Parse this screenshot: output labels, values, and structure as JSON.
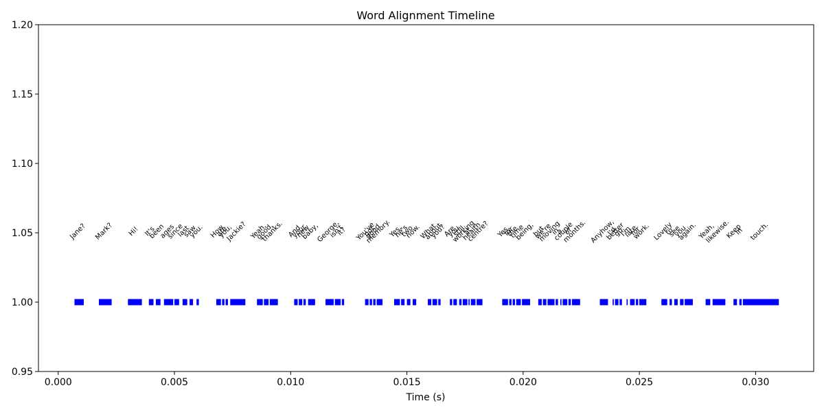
{
  "chart_data": {
    "type": "timeline",
    "title": "Word Alignment Timeline",
    "xlabel": "Time (s)",
    "ylabel": "",
    "xlim": [
      -0.00085,
      0.0325
    ],
    "ylim": [
      0.95,
      1.2
    ],
    "xticks": [
      0.0,
      0.005,
      0.01,
      0.015,
      0.02,
      0.025,
      0.03
    ],
    "xtick_labels": [
      "0.000",
      "0.005",
      "0.010",
      "0.015",
      "0.020",
      "0.025",
      "0.030"
    ],
    "yticks": [
      0.95,
      1.0,
      1.05,
      1.1,
      1.15,
      1.2
    ],
    "ytick_labels": [
      "0.95",
      "1.00",
      "1.05",
      "1.10",
      "1.15",
      "1.20"
    ],
    "segment_y": 1.0,
    "label_y": 1.05,
    "segment_color": "#0000ff",
    "words": [
      {
        "word": "Jane?",
        "start": 0.0007,
        "end": 0.0011
      },
      {
        "word": "Mark?",
        "start": 0.00175,
        "end": 0.0023
      },
      {
        "word": "Hi!",
        "start": 0.003,
        "end": 0.0036
      },
      {
        "word": "It's",
        "start": 0.0039,
        "end": 0.0041
      },
      {
        "word": "been",
        "start": 0.0042,
        "end": 0.0044
      },
      {
        "word": "ages",
        "start": 0.00455,
        "end": 0.00495
      },
      {
        "word": "since",
        "start": 0.005,
        "end": 0.0052
      },
      {
        "word": "last",
        "start": 0.00535,
        "end": 0.00555
      },
      {
        "word": "saw",
        "start": 0.00565,
        "end": 0.0058
      },
      {
        "word": "you.",
        "start": 0.00595,
        "end": 0.00605
      },
      {
        "word": "How",
        "start": 0.0068,
        "end": 0.007
      },
      {
        "word": "are",
        "start": 0.00705,
        "end": 0.00715
      },
      {
        "word": "you,",
        "start": 0.0072,
        "end": 0.0073
      },
      {
        "word": "Jackie?",
        "start": 0.0074,
        "end": 0.00805
      },
      {
        "word": "Yeah,",
        "start": 0.00855,
        "end": 0.0088
      },
      {
        "word": "good,",
        "start": 0.00885,
        "end": 0.00905
      },
      {
        "word": "thanks.",
        "start": 0.0091,
        "end": 0.00945
      },
      {
        "word": "And",
        "start": 0.01015,
        "end": 0.0103
      },
      {
        "word": "your",
        "start": 0.01035,
        "end": 0.0105
      },
      {
        "word": "new",
        "start": 0.01055,
        "end": 0.01065
      },
      {
        "word": "baby,",
        "start": 0.01075,
        "end": 0.01105
      },
      {
        "word": "George,",
        "start": 0.0115,
        "end": 0.01185
      },
      {
        "word": "isn't",
        "start": 0.0119,
        "end": 0.01215
      },
      {
        "word": "it?",
        "start": 0.0122,
        "end": 0.0123
      },
      {
        "word": "You've",
        "start": 0.0132,
        "end": 0.01335
      },
      {
        "word": "got",
        "start": 0.0134,
        "end": 0.0135
      },
      {
        "word": "good",
        "start": 0.01355,
        "end": 0.01365
      },
      {
        "word": "memory.",
        "start": 0.0137,
        "end": 0.01395
      },
      {
        "word": "Yes,",
        "start": 0.01445,
        "end": 0.0147
      },
      {
        "word": "he's",
        "start": 0.01475,
        "end": 0.0149
      },
      {
        "word": "two",
        "start": 0.015,
        "end": 0.01515
      },
      {
        "word": "now.",
        "start": 0.01525,
        "end": 0.0154
      },
      {
        "word": "What",
        "start": 0.0159,
        "end": 0.01605
      },
      {
        "word": "about",
        "start": 0.0161,
        "end": 0.0163
      },
      {
        "word": "you?",
        "start": 0.01635,
        "end": 0.01645
      },
      {
        "word": "Are",
        "start": 0.01685,
        "end": 0.01695
      },
      {
        "word": "you",
        "start": 0.017,
        "end": 0.01715
      },
      {
        "word": "still",
        "start": 0.01725,
        "end": 0.01735
      },
      {
        "word": "working",
        "start": 0.0174,
        "end": 0.0176
      },
      {
        "word": "at",
        "start": 0.01765,
        "end": 0.0177
      },
      {
        "word": "health",
        "start": 0.01775,
        "end": 0.01795
      },
      {
        "word": "centre?",
        "start": 0.018,
        "end": 0.01825
      },
      {
        "word": "Yes,",
        "start": 0.0191,
        "end": 0.01935
      },
      {
        "word": "for",
        "start": 0.0194,
        "end": 0.0195
      },
      {
        "word": "the",
        "start": 0.01955,
        "end": 0.01965
      },
      {
        "word": "time",
        "start": 0.0197,
        "end": 0.0199
      },
      {
        "word": "being,",
        "start": 0.01995,
        "end": 0.0203
      },
      {
        "word": "but",
        "start": 0.02065,
        "end": 0.0208
      },
      {
        "word": "we're",
        "start": 0.02085,
        "end": 0.021
      },
      {
        "word": "moving",
        "start": 0.02105,
        "end": 0.02135
      },
      {
        "word": "in",
        "start": 0.0214,
        "end": 0.0215
      },
      {
        "word": "a",
        "start": 0.0216,
        "end": 0.02165
      },
      {
        "word": "couple",
        "start": 0.0217,
        "end": 0.0219
      },
      {
        "word": "of",
        "start": 0.02195,
        "end": 0.02205
      },
      {
        "word": "months.",
        "start": 0.0221,
        "end": 0.02245
      },
      {
        "word": "Anyhow,",
        "start": 0.0233,
        "end": 0.02365
      },
      {
        "word": "I'd",
        "start": 0.02385,
        "end": 0.0239
      },
      {
        "word": "better",
        "start": 0.02395,
        "end": 0.0241
      },
      {
        "word": "go.",
        "start": 0.02415,
        "end": 0.02425
      },
      {
        "word": "I'm",
        "start": 0.02445,
        "end": 0.0245
      },
      {
        "word": "late",
        "start": 0.0246,
        "end": 0.0248
      },
      {
        "word": "for",
        "start": 0.02485,
        "end": 0.02495
      },
      {
        "word": "work.",
        "start": 0.025,
        "end": 0.0253
      },
      {
        "word": "Lovely",
        "start": 0.02595,
        "end": 0.0262
      },
      {
        "word": "to",
        "start": 0.0263,
        "end": 0.0264
      },
      {
        "word": "see",
        "start": 0.0265,
        "end": 0.02665
      },
      {
        "word": "you",
        "start": 0.02675,
        "end": 0.0269
      },
      {
        "word": "again.",
        "start": 0.02695,
        "end": 0.0273
      },
      {
        "word": "Yeah,",
        "start": 0.02785,
        "end": 0.02805
      },
      {
        "word": "likewise.",
        "start": 0.02815,
        "end": 0.0287
      },
      {
        "word": "Keep",
        "start": 0.02905,
        "end": 0.0292
      },
      {
        "word": "in",
        "start": 0.0293,
        "end": 0.0294
      },
      {
        "word": "touch.",
        "start": 0.02945,
        "end": 0.031
      }
    ]
  }
}
